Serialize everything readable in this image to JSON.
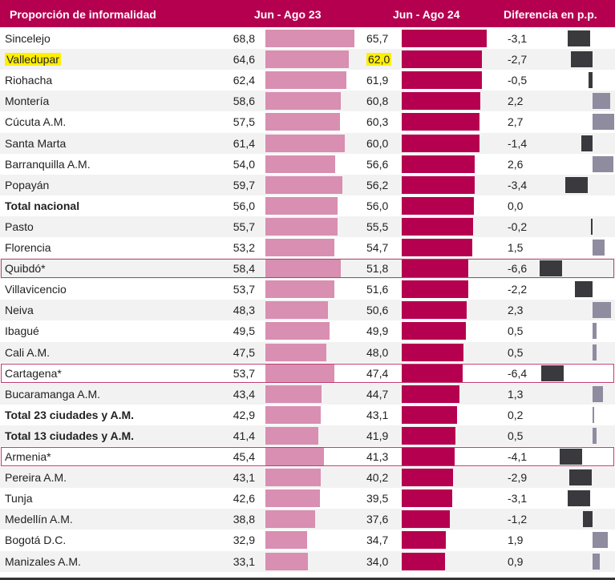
{
  "colors": {
    "header_bg": "#b5004f",
    "bar_2023": "#d88fb1",
    "bar_2024": "#b5004f",
    "diff_negative": "#3a3a3e",
    "diff_positive": "#8f8ca0",
    "highlight": "#ffef00",
    "box_outline": "#c23b6e"
  },
  "header": {
    "col_name": "Proporción de informalidad",
    "col_2023": "Jun - Ago 23",
    "col_2024": "Jun - Ago 24",
    "col_diff": "Diferencia en p.p."
  },
  "chart_data": {
    "type": "bar",
    "title": "Proporción de informalidad",
    "series": [
      {
        "name": "Jun - Ago 23",
        "values": [
          68.8,
          64.6,
          62.4,
          58.6,
          57.5,
          61.4,
          54.0,
          59.7,
          56.0,
          55.7,
          53.2,
          58.4,
          53.7,
          48.3,
          49.5,
          47.5,
          53.7,
          43.4,
          42.9,
          41.4,
          45.4,
          43.1,
          42.6,
          38.8,
          32.9,
          33.1
        ]
      },
      {
        "name": "Jun - Ago 24",
        "values": [
          65.7,
          62.0,
          61.9,
          60.8,
          60.3,
          60.0,
          56.6,
          56.2,
          56.0,
          55.5,
          54.7,
          51.8,
          51.6,
          50.6,
          49.9,
          48.0,
          47.4,
          44.7,
          43.1,
          41.9,
          41.3,
          40.2,
          39.5,
          37.6,
          34.7,
          34.0
        ]
      },
      {
        "name": "Diferencia en p.p.",
        "values": [
          -3.1,
          -2.7,
          -0.5,
          2.2,
          2.7,
          -1.4,
          2.6,
          -3.4,
          0.0,
          -0.2,
          1.5,
          -6.6,
          -2.2,
          2.3,
          0.5,
          0.5,
          -6.4,
          1.3,
          0.2,
          0.5,
          -4.1,
          -2.9,
          -3.1,
          -1.2,
          1.9,
          0.9
        ]
      }
    ],
    "rows": [
      {
        "name": "Sincelejo",
        "v23": "68,8",
        "v24": "65,7",
        "diff": "-3,1"
      },
      {
        "name": "Valledupar",
        "v23": "64,6",
        "v24": "62,0",
        "diff": "-2,7",
        "highlight": true
      },
      {
        "name": "Riohacha",
        "v23": "62,4",
        "v24": "61,9",
        "diff": "-0,5"
      },
      {
        "name": "Montería",
        "v23": "58,6",
        "v24": "60,8",
        "diff": "2,2"
      },
      {
        "name": "Cúcuta A.M.",
        "v23": "57,5",
        "v24": "60,3",
        "diff": "2,7"
      },
      {
        "name": "Santa Marta",
        "v23": "61,4",
        "v24": "60,0",
        "diff": "-1,4"
      },
      {
        "name": "Barranquilla A.M.",
        "v23": "54,0",
        "v24": "56,6",
        "diff": "2,6"
      },
      {
        "name": "Popayán",
        "v23": "59,7",
        "v24": "56,2",
        "diff": "-3,4"
      },
      {
        "name": "Total nacional",
        "v23": "56,0",
        "v24": "56,0",
        "diff": "0,0",
        "bold": true
      },
      {
        "name": "Pasto",
        "v23": "55,7",
        "v24": "55,5",
        "diff": "-0,2"
      },
      {
        "name": "Florencia",
        "v23": "53,2",
        "v24": "54,7",
        "diff": "1,5"
      },
      {
        "name": "Quibdó*",
        "v23": "58,4",
        "v24": "51,8",
        "diff": "-6,6",
        "boxed": true
      },
      {
        "name": "Villavicencio",
        "v23": "53,7",
        "v24": "51,6",
        "diff": "-2,2"
      },
      {
        "name": "Neiva",
        "v23": "48,3",
        "v24": "50,6",
        "diff": "2,3"
      },
      {
        "name": "Ibagué",
        "v23": "49,5",
        "v24": "49,9",
        "diff": "0,5"
      },
      {
        "name": "Cali A.M.",
        "v23": "47,5",
        "v24": "48,0",
        "diff": "0,5"
      },
      {
        "name": "Cartagena*",
        "v23": "53,7",
        "v24": "47,4",
        "diff": "-6,4",
        "boxed": true
      },
      {
        "name": "Bucaramanga A.M.",
        "v23": "43,4",
        "v24": "44,7",
        "diff": "1,3"
      },
      {
        "name": "Total 23 ciudades y A.M.",
        "v23": "42,9",
        "v24": "43,1",
        "diff": "0,2",
        "bold": true
      },
      {
        "name": "Total 13 ciudades y A.M.",
        "v23": "41,4",
        "v24": "41,9",
        "diff": "0,5",
        "bold": true
      },
      {
        "name": "Armenia*",
        "v23": "45,4",
        "v24": "41,3",
        "diff": "-4,1",
        "boxed": true
      },
      {
        "name": "Pereira A.M.",
        "v23": "43,1",
        "v24": "40,2",
        "diff": "-2,9"
      },
      {
        "name": "Tunja",
        "v23": "42,6",
        "v24": "39,5",
        "diff": "-3,1"
      },
      {
        "name": "Medellín A.M.",
        "v23": "38,8",
        "v24": "37,6",
        "diff": "-1,2"
      },
      {
        "name": "Bogotá D.C.",
        "v23": "32,9",
        "v24": "34,7",
        "diff": "1,9"
      },
      {
        "name": "Manizales A.M.",
        "v23": "33,1",
        "v24": "34,0",
        "diff": "0,9"
      }
    ]
  }
}
